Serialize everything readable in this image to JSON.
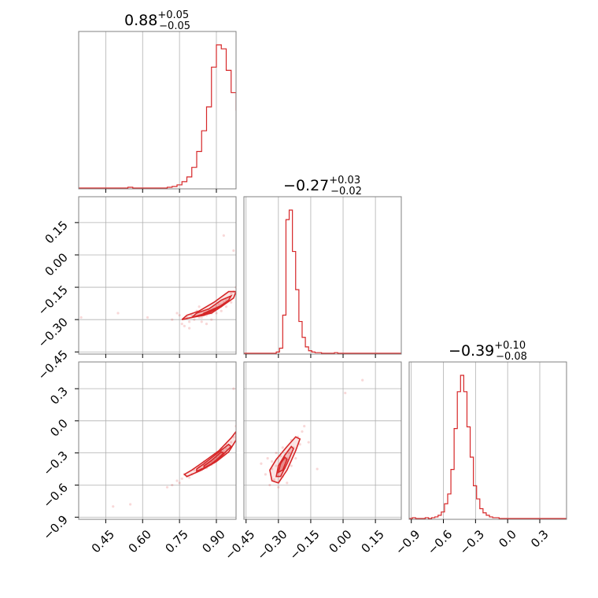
{
  "chart_data": {
    "type": "corner",
    "color": "#d62728",
    "grid": true,
    "parameters": [
      {
        "index": 0,
        "range": [
          0.34,
          0.98
        ],
        "ticks": [
          0.45,
          0.6,
          0.75,
          0.9
        ],
        "tick_labels": [
          "0.45",
          "0.60",
          "0.75",
          "0.90"
        ],
        "title": {
          "main": "0.88",
          "plus": "+0.05",
          "minus": "−0.05"
        },
        "hist": {
          "start": 0.34,
          "width": 0.02,
          "counts": [
            0,
            0,
            0,
            0,
            0,
            0,
            0,
            0,
            0,
            0,
            1,
            0,
            0,
            0,
            0,
            0,
            0,
            0,
            1,
            2,
            4,
            8,
            14,
            26,
            46,
            72,
            102,
            152,
            180,
            175,
            148,
            120,
            98,
            55,
            10
          ]
        }
      },
      {
        "index": 1,
        "range": [
          -0.46,
          0.27
        ],
        "ticks": [
          -0.45,
          -0.3,
          -0.15,
          0.0,
          0.15
        ],
        "tick_labels": [
          "−0.45",
          "−0.30",
          "−0.15",
          "0.00",
          "0.15"
        ],
        "title": {
          "main": "−0.27",
          "plus": "+0.03",
          "minus": "−0.02"
        },
        "hist": {
          "start": -0.46,
          "width": 0.015,
          "counts": [
            0,
            0,
            0,
            0,
            0,
            0,
            0,
            0,
            0,
            0,
            2,
            8,
            60,
            210,
            225,
            160,
            100,
            50,
            25,
            10,
            4,
            2,
            1,
            1,
            0,
            0,
            0,
            0,
            1,
            0,
            0,
            0,
            0,
            0,
            0,
            0,
            0,
            0,
            0,
            0,
            0,
            0,
            0,
            0,
            0,
            0,
            0,
            0,
            0
          ]
        }
      },
      {
        "index": 2,
        "range": [
          -0.92,
          0.55
        ],
        "ticks": [
          -0.9,
          -0.6,
          -0.3,
          0.0,
          0.3
        ],
        "tick_labels": [
          "−0.9",
          "−0.6",
          "−0.3",
          "0.0",
          "0.3"
        ],
        "title": {
          "main": "−0.39",
          "plus": "+0.10",
          "minus": "−0.08"
        },
        "hist": {
          "start": -0.92,
          "width": 0.03,
          "counts": [
            0,
            1,
            0,
            0,
            0,
            1,
            0,
            1,
            2,
            4,
            8,
            18,
            30,
            60,
            110,
            155,
            175,
            155,
            112,
            75,
            40,
            24,
            12,
            7,
            4,
            2,
            1,
            1,
            0,
            0,
            0,
            0,
            0,
            0,
            0,
            0,
            0,
            0,
            0,
            0,
            0,
            0,
            0,
            0,
            0,
            0,
            0,
            0,
            0
          ]
        }
      }
    ],
    "scatter_pairs": [
      {
        "x_param": 0,
        "y_param": 1,
        "points": [
          [
            0.35,
            -0.29
          ],
          [
            0.5,
            -0.27
          ],
          [
            0.62,
            -0.29
          ],
          [
            0.72,
            -0.3
          ],
          [
            0.74,
            -0.27
          ],
          [
            0.76,
            -0.32
          ],
          [
            0.78,
            -0.29
          ],
          [
            0.79,
            -0.31
          ],
          [
            0.8,
            -0.28
          ],
          [
            0.81,
            -0.3
          ],
          [
            0.82,
            -0.26
          ],
          [
            0.83,
            -0.29
          ],
          [
            0.84,
            -0.31
          ],
          [
            0.85,
            -0.27
          ],
          [
            0.86,
            -0.28
          ],
          [
            0.87,
            -0.26
          ],
          [
            0.88,
            -0.27
          ],
          [
            0.89,
            -0.25
          ],
          [
            0.9,
            -0.24
          ],
          [
            0.91,
            -0.23
          ],
          [
            0.92,
            -0.23
          ],
          [
            0.93,
            -0.22
          ],
          [
            0.94,
            -0.21
          ],
          [
            0.95,
            -0.2
          ],
          [
            0.96,
            -0.18
          ],
          [
            0.97,
            -0.17
          ],
          [
            0.98,
            -0.15
          ],
          [
            0.97,
            0.02
          ],
          [
            0.93,
            0.09
          ],
          [
            0.77,
            -0.33
          ],
          [
            0.75,
            -0.28
          ],
          [
            0.79,
            -0.34
          ],
          [
            0.84,
            -0.29
          ],
          [
            0.86,
            -0.32
          ],
          [
            0.88,
            -0.3
          ],
          [
            0.9,
            -0.27
          ],
          [
            0.92,
            -0.26
          ],
          [
            0.94,
            -0.24
          ],
          [
            0.96,
            -0.22
          ],
          [
            0.83,
            -0.24
          ]
        ],
        "contours": [
          [
            [
              0.76,
              -0.3
            ],
            [
              0.8,
              -0.29
            ],
            [
              0.86,
              -0.27
            ],
            [
              0.92,
              -0.24
            ],
            [
              0.97,
              -0.2
            ],
            [
              0.98,
              -0.17
            ],
            [
              0.95,
              -0.17
            ],
            [
              0.89,
              -0.22
            ],
            [
              0.83,
              -0.26
            ],
            [
              0.78,
              -0.28
            ],
            [
              0.76,
              -0.3
            ]
          ],
          [
            [
              0.8,
              -0.29
            ],
            [
              0.85,
              -0.28
            ],
            [
              0.9,
              -0.25
            ],
            [
              0.95,
              -0.21
            ],
            [
              0.96,
              -0.19
            ],
            [
              0.92,
              -0.21
            ],
            [
              0.87,
              -0.25
            ],
            [
              0.82,
              -0.27
            ],
            [
              0.8,
              -0.29
            ]
          ],
          [
            [
              0.84,
              -0.28
            ],
            [
              0.88,
              -0.27
            ],
            [
              0.92,
              -0.24
            ],
            [
              0.93,
              -0.23
            ],
            [
              0.89,
              -0.25
            ],
            [
              0.85,
              -0.27
            ],
            [
              0.84,
              -0.28
            ]
          ]
        ]
      },
      {
        "x_param": 0,
        "y_param": 2,
        "points": [
          [
            0.48,
            -0.8
          ],
          [
            0.55,
            -0.78
          ],
          [
            0.7,
            -0.62
          ],
          [
            0.72,
            -0.6
          ],
          [
            0.74,
            -0.56
          ],
          [
            0.76,
            -0.54
          ],
          [
            0.78,
            -0.52
          ],
          [
            0.8,
            -0.5
          ],
          [
            0.82,
            -0.47
          ],
          [
            0.84,
            -0.45
          ],
          [
            0.85,
            -0.42
          ],
          [
            0.86,
            -0.41
          ],
          [
            0.87,
            -0.4
          ],
          [
            0.88,
            -0.38
          ],
          [
            0.89,
            -0.36
          ],
          [
            0.9,
            -0.34
          ],
          [
            0.91,
            -0.32
          ],
          [
            0.92,
            -0.3
          ],
          [
            0.93,
            -0.28
          ],
          [
            0.94,
            -0.26
          ],
          [
            0.95,
            -0.23
          ],
          [
            0.96,
            -0.2
          ],
          [
            0.97,
            -0.15
          ],
          [
            0.98,
            -0.05
          ],
          [
            0.97,
            0.3
          ],
          [
            0.92,
            -0.26
          ],
          [
            0.86,
            -0.44
          ],
          [
            0.81,
            -0.46
          ],
          [
            0.79,
            -0.53
          ],
          [
            0.83,
            -0.43
          ],
          [
            0.88,
            -0.41
          ],
          [
            0.9,
            -0.3
          ],
          [
            0.94,
            -0.22
          ],
          [
            0.96,
            -0.25
          ],
          [
            0.93,
            -0.32
          ],
          [
            0.75,
            -0.58
          ],
          [
            0.77,
            -0.5
          ],
          [
            0.85,
            -0.38
          ],
          [
            0.89,
            -0.39
          ],
          [
            0.91,
            -0.35
          ]
        ],
        "contours": [
          [
            [
              0.78,
              -0.52
            ],
            [
              0.84,
              -0.46
            ],
            [
              0.9,
              -0.38
            ],
            [
              0.95,
              -0.29
            ],
            [
              0.98,
              -0.18
            ],
            [
              0.98,
              -0.1
            ],
            [
              0.96,
              -0.16
            ],
            [
              0.91,
              -0.28
            ],
            [
              0.85,
              -0.38
            ],
            [
              0.8,
              -0.46
            ],
            [
              0.77,
              -0.5
            ],
            [
              0.78,
              -0.52
            ]
          ],
          [
            [
              0.82,
              -0.47
            ],
            [
              0.87,
              -0.42
            ],
            [
              0.92,
              -0.33
            ],
            [
              0.96,
              -0.24
            ],
            [
              0.95,
              -0.22
            ],
            [
              0.9,
              -0.31
            ],
            [
              0.85,
              -0.4
            ],
            [
              0.82,
              -0.45
            ],
            [
              0.82,
              -0.47
            ]
          ],
          [
            [
              0.85,
              -0.44
            ],
            [
              0.89,
              -0.39
            ],
            [
              0.93,
              -0.3
            ],
            [
              0.92,
              -0.29
            ],
            [
              0.88,
              -0.37
            ],
            [
              0.85,
              -0.42
            ],
            [
              0.85,
              -0.44
            ]
          ]
        ]
      },
      {
        "x_param": 1,
        "y_param": 2,
        "points": [
          [
            -0.38,
            -0.4
          ],
          [
            -0.36,
            -0.5
          ],
          [
            -0.35,
            -0.35
          ],
          [
            -0.34,
            -0.6
          ],
          [
            -0.33,
            -0.45
          ],
          [
            -0.32,
            -0.55
          ],
          [
            -0.31,
            -0.3
          ],
          [
            -0.3,
            -0.48
          ],
          [
            -0.3,
            -0.62
          ],
          [
            -0.29,
            -0.4
          ],
          [
            -0.28,
            -0.52
          ],
          [
            -0.28,
            -0.25
          ],
          [
            -0.27,
            -0.44
          ],
          [
            -0.26,
            -0.35
          ],
          [
            -0.26,
            -0.58
          ],
          [
            -0.25,
            -0.3
          ],
          [
            -0.24,
            -0.42
          ],
          [
            -0.24,
            -0.18
          ],
          [
            -0.23,
            -0.25
          ],
          [
            -0.22,
            -0.35
          ],
          [
            -0.21,
            -0.15
          ],
          [
            -0.2,
            -0.22
          ],
          [
            -0.19,
            -0.1
          ],
          [
            -0.18,
            -0.05
          ],
          [
            -0.16,
            -0.2
          ],
          [
            -0.12,
            -0.45
          ],
          [
            0.01,
            0.26
          ],
          [
            0.09,
            0.38
          ],
          [
            -0.29,
            -0.33
          ],
          [
            -0.27,
            -0.36
          ],
          [
            -0.31,
            -0.42
          ],
          [
            -0.33,
            -0.38
          ]
        ],
        "contours": [
          [
            [
              -0.33,
              -0.56
            ],
            [
              -0.3,
              -0.58
            ],
            [
              -0.26,
              -0.46
            ],
            [
              -0.22,
              -0.28
            ],
            [
              -0.2,
              -0.17
            ],
            [
              -0.22,
              -0.15
            ],
            [
              -0.26,
              -0.24
            ],
            [
              -0.31,
              -0.36
            ],
            [
              -0.34,
              -0.46
            ],
            [
              -0.33,
              -0.56
            ]
          ],
          [
            [
              -0.31,
              -0.52
            ],
            [
              -0.29,
              -0.52
            ],
            [
              -0.26,
              -0.4
            ],
            [
              -0.23,
              -0.26
            ],
            [
              -0.24,
              -0.24
            ],
            [
              -0.27,
              -0.32
            ],
            [
              -0.3,
              -0.42
            ],
            [
              -0.31,
              -0.52
            ]
          ],
          [
            [
              -0.3,
              -0.48
            ],
            [
              -0.28,
              -0.46
            ],
            [
              -0.26,
              -0.36
            ],
            [
              -0.27,
              -0.34
            ],
            [
              -0.29,
              -0.4
            ],
            [
              -0.3,
              -0.48
            ]
          ]
        ]
      }
    ]
  }
}
